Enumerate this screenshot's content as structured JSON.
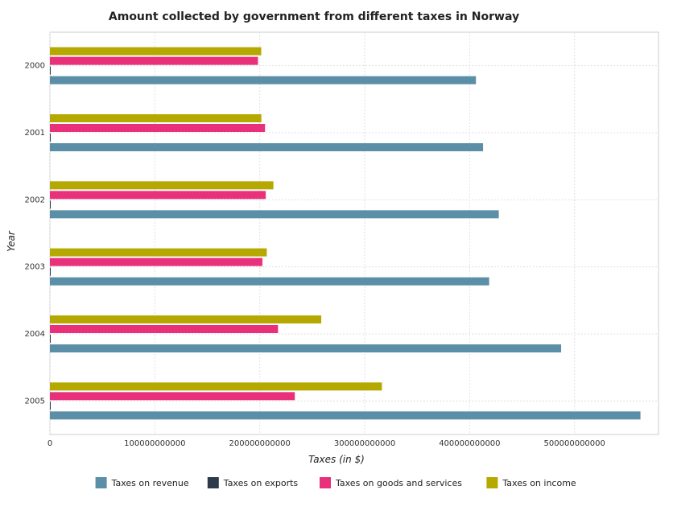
{
  "chart_data": {
    "type": "bar",
    "orientation": "horizontal",
    "title": "Amount collected by government from different taxes in Norway",
    "xlabel": "Taxes (in $)",
    "ylabel": "Year",
    "categories": [
      "2000",
      "2001",
      "2002",
      "2003",
      "2004",
      "2005"
    ],
    "series": [
      {
        "name": "Taxes on revenue",
        "color": "#5b8fa8",
        "values": [
          406000000000,
          412800000000,
          427800000000,
          418600000000,
          487200000000,
          562800000000
        ]
      },
      {
        "name": "Taxes on exports",
        "color": "#2d3a4a",
        "values": [
          400000000,
          450000000,
          480000000,
          500000000,
          550000000,
          600000000
        ]
      },
      {
        "name": "Taxes on goods and services",
        "color": "#e8317a",
        "values": [
          198300000000,
          205000000000,
          205700000000,
          202500000000,
          217400000000,
          233400000000
        ]
      },
      {
        "name": "Taxes on income",
        "color": "#b5a800",
        "values": [
          201400000000,
          201500000000,
          213000000000,
          206700000000,
          258600000000,
          316400000000
        ]
      }
    ],
    "xlim": [
      0,
      580000000000
    ],
    "xticks": [
      0,
      100000000000,
      200000000000,
      300000000000,
      400000000000,
      500000000000
    ],
    "xtick_labels": [
      "0",
      "100000000000",
      "200000000000",
      "300000000000",
      "400000000000",
      "500000000000"
    ],
    "grid": true,
    "legend_position": "bottom"
  }
}
